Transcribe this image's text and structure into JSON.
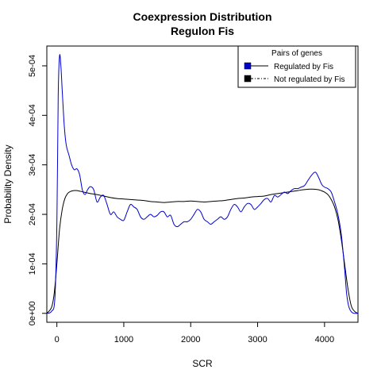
{
  "chart_data": {
    "type": "line",
    "title": "Coexpression Distribution",
    "subtitle": "Regulon Fis",
    "xlabel": "SCR",
    "ylabel": "Probability Density",
    "xlim": [
      -150,
      4500
    ],
    "ylim": [
      -1.8e-05,
      0.00054
    ],
    "x_ticks": [
      0,
      1000,
      2000,
      3000,
      4000
    ],
    "x_tick_labels": [
      "0",
      "1000",
      "2000",
      "3000",
      "4000"
    ],
    "y_ticks": [
      0,
      0.0001,
      0.0002,
      0.0003,
      0.0004,
      0.0005
    ],
    "y_tick_labels": [
      "0e+00",
      "1e-04",
      "2e-04",
      "3e-04",
      "4e-04",
      "5e-04"
    ],
    "grid": false,
    "legend": {
      "title": "Pairs of genes",
      "placement": "top-right",
      "entries": [
        "Regulated by  Fis",
        "Not regulated by  Fis"
      ]
    },
    "series": [
      {
        "key": "regulated",
        "color": "#0000cc",
        "x": [
          -150,
          -80,
          -30,
          0,
          20,
          40,
          60,
          80,
          110,
          140,
          180,
          220,
          260,
          300,
          340,
          380,
          420,
          460,
          500,
          550,
          600,
          650,
          700,
          750,
          800,
          850,
          900,
          950,
          1000,
          1050,
          1100,
          1150,
          1200,
          1250,
          1300,
          1350,
          1400,
          1450,
          1500,
          1550,
          1600,
          1650,
          1700,
          1750,
          1800,
          1850,
          1900,
          1950,
          2000,
          2050,
          2100,
          2150,
          2200,
          2250,
          2300,
          2350,
          2400,
          2450,
          2500,
          2550,
          2600,
          2650,
          2700,
          2750,
          2800,
          2850,
          2900,
          2950,
          3000,
          3050,
          3100,
          3150,
          3200,
          3250,
          3300,
          3350,
          3400,
          3450,
          3500,
          3550,
          3600,
          3650,
          3700,
          3750,
          3800,
          3850,
          3880,
          3920,
          3960,
          4000,
          4050,
          4100,
          4150,
          4200,
          4250,
          4300,
          4330,
          4360,
          4390,
          4420,
          4450,
          4500
        ],
        "y": [
          0.0,
          4e-06,
          3e-05,
          0.00018,
          0.00044,
          0.00052,
          0.0005,
          0.00045,
          0.00038,
          0.00034,
          0.00032,
          0.0003,
          0.00029,
          0.000292,
          0.00028,
          0.00025,
          0.00024,
          0.00025,
          0.000256,
          0.00025,
          0.000225,
          0.000235,
          0.000238,
          0.00022,
          0.0002,
          0.000205,
          0.000195,
          0.00019,
          0.000188,
          0.000205,
          0.00022,
          0.000215,
          0.00021,
          0.000195,
          0.00019,
          0.000195,
          0.0002,
          0.000195,
          0.000198,
          0.000205,
          0.000205,
          0.000195,
          0.000198,
          0.00018,
          0.000175,
          0.00018,
          0.000185,
          0.000185,
          0.00019,
          0.0002,
          0.00021,
          0.000205,
          0.00019,
          0.000185,
          0.00018,
          0.000185,
          0.00019,
          0.000195,
          0.00019,
          0.000195,
          0.00021,
          0.00022,
          0.000215,
          0.000205,
          0.000215,
          0.000222,
          0.00022,
          0.00021,
          0.000215,
          0.000222,
          0.00023,
          0.000232,
          0.000225,
          0.000238,
          0.000235,
          0.00024,
          0.000245,
          0.000242,
          0.000248,
          0.000252,
          0.000252,
          0.000255,
          0.000258,
          0.000268,
          0.000278,
          0.000285,
          0.000283,
          0.000272,
          0.00026,
          0.000255,
          0.000252,
          0.000245,
          0.000225,
          0.0002,
          0.00016,
          9e-05,
          4e-05,
          1.5e-05,
          5e-06,
          1e-06,
          0.0,
          0.0
        ]
      },
      {
        "key": "not_regulated",
        "color": "#000000",
        "x": [
          -150,
          -80,
          -40,
          0,
          40,
          80,
          120,
          160,
          200,
          250,
          300,
          400,
          500,
          600,
          700,
          800,
          900,
          1000,
          1100,
          1200,
          1300,
          1400,
          1500,
          1600,
          1700,
          1800,
          1900,
          2000,
          2100,
          2200,
          2300,
          2400,
          2500,
          2600,
          2700,
          2800,
          2900,
          3000,
          3100,
          3200,
          3300,
          3400,
          3500,
          3600,
          3700,
          3800,
          3900,
          3950,
          4000,
          4050,
          4100,
          4150,
          4200,
          4250,
          4300,
          4350,
          4400,
          4450,
          4500
        ],
        "y": [
          0.0,
          1.2e-05,
          4e-05,
          0.0001,
          0.00017,
          0.00021,
          0.000232,
          0.000242,
          0.000246,
          0.000248,
          0.000248,
          0.000245,
          0.000242,
          0.00024,
          0.000237,
          0.000234,
          0.000232,
          0.000231,
          0.00023,
          0.000229,
          0.000228,
          0.000226,
          0.000225,
          0.000224,
          0.000225,
          0.000226,
          0.000226,
          0.000227,
          0.000226,
          0.000225,
          0.000226,
          0.000227,
          0.000228,
          0.00023,
          0.000232,
          0.000233,
          0.000235,
          0.000236,
          0.000237,
          0.00024,
          0.000242,
          0.000244,
          0.000246,
          0.000248,
          0.00025,
          0.000251,
          0.00025,
          0.000248,
          0.000245,
          0.00024,
          0.00023,
          0.000215,
          0.00019,
          0.00015,
          0.0001,
          5e-05,
          1.5e-05,
          4e-06,
          0.0
        ]
      }
    ]
  }
}
